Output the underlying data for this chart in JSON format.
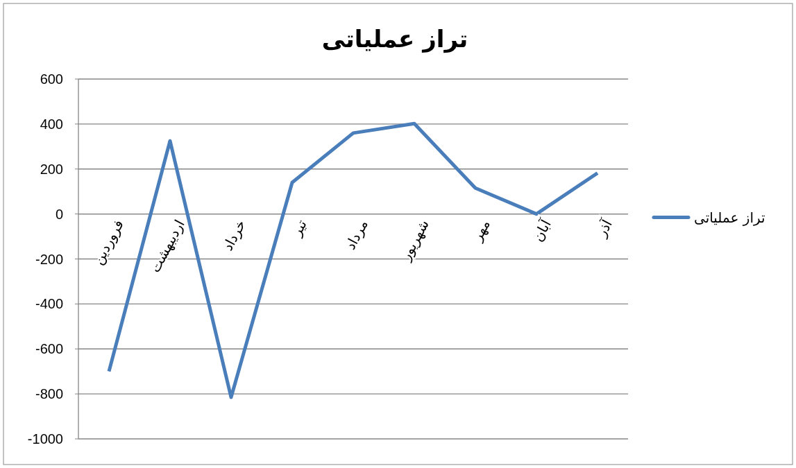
{
  "chart_data": {
    "type": "line",
    "title": "تراز عملیاتی",
    "categories": [
      "فروردین",
      "اردیبهشت",
      "خرداد",
      "تیر",
      "مرداد",
      "شهریور",
      "مهر",
      "آبان",
      "آذر"
    ],
    "series": [
      {
        "name": "تراز عملیاتی",
        "color": "#4a7ebb",
        "values": [
          -700,
          325,
          -815,
          140,
          360,
          402,
          115,
          0,
          182
        ]
      }
    ],
    "ylim": [
      -1000,
      600
    ],
    "yticks": [
      -1000,
      -800,
      -600,
      -400,
      -200,
      0,
      200,
      400,
      600
    ],
    "grid": "y",
    "legend": "right",
    "marker": "none",
    "line_style": "solid"
  }
}
